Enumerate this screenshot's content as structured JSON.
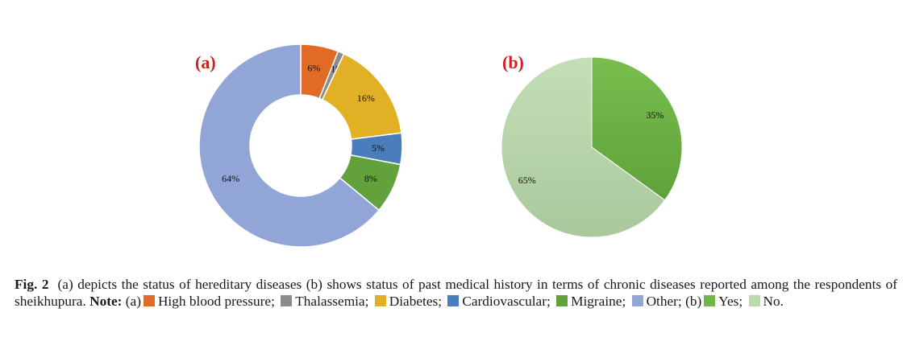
{
  "chart_data": [
    {
      "type": "pie",
      "variant": "donut",
      "panel_label": "(a)",
      "slices": [
        {
          "name": "High blood pressure",
          "value": 6,
          "label": "6%",
          "color": "#E06A26"
        },
        {
          "name": "Thalassemia",
          "value": 1,
          "label": "1%",
          "color": "#8C8C8C"
        },
        {
          "name": "Diabetes",
          "value": 16,
          "label": "16%",
          "color": "#E2B024"
        },
        {
          "name": "Cardiovascular",
          "value": 5,
          "label": "5%",
          "color": "#4A7DBC"
        },
        {
          "name": "Migraine",
          "value": 8,
          "label": "8%",
          "color": "#62A13C"
        },
        {
          "name": "Other",
          "value": 64,
          "label": "64%",
          "color": "#91A5D7"
        }
      ]
    },
    {
      "type": "pie",
      "variant": "pie",
      "panel_label": "(b)",
      "slices": [
        {
          "name": "Yes",
          "value": 35,
          "label": "35%",
          "color": "#72B548"
        },
        {
          "name": "No",
          "value": 65,
          "label": "65%",
          "color": "#BCD9AE"
        }
      ]
    }
  ],
  "caption": {
    "fig": "Fig. 2",
    "text1": "(a) depicts the status of hereditary diseases (b) shows status of past medical history in terms of chronic diseases reported among the respondents of sheikhupura.",
    "note": "Note:",
    "a": "(a)",
    "b": "(b)",
    "items_a": [
      "High blood pressure;",
      "Thalassemia;",
      "Diabetes;",
      "Cardiovascular;",
      "Migraine;",
      "Other;"
    ],
    "items_b": [
      "Yes;",
      "No."
    ]
  }
}
